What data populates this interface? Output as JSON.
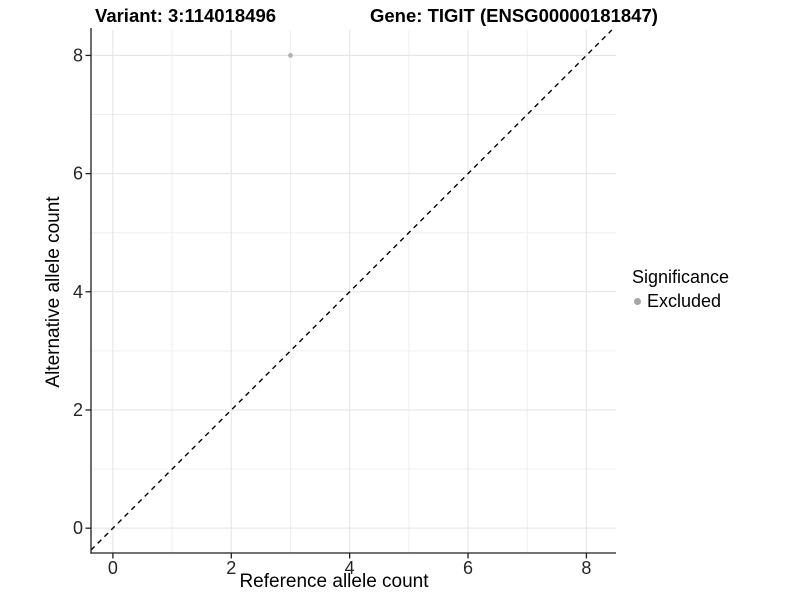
{
  "chart_data": {
    "type": "scatter",
    "title_left": "Variant: 3:114018496",
    "title_right": "Gene: TIGIT (ENSG00000181847)",
    "xlabel": "Reference allele count",
    "ylabel": "Alternative allele count",
    "x_ticks": [
      0,
      2,
      4,
      6,
      8
    ],
    "y_ticks": [
      0,
      2,
      4,
      6,
      8
    ],
    "x_minor_ticks": [
      1,
      3,
      5,
      7
    ],
    "y_minor_ticks": [
      1,
      3,
      5,
      7
    ],
    "xlim": [
      -0.37,
      8.5
    ],
    "ylim": [
      -0.42,
      8.43
    ],
    "grid": "major+minor",
    "series": [
      {
        "name": "Excluded",
        "color": "#b2b2b2",
        "points": [
          {
            "x": 3,
            "y": 8
          }
        ]
      }
    ],
    "reference_line": {
      "kind": "identity y=x",
      "style": "dashed",
      "color": "#000000"
    },
    "legend": {
      "title": "Significance",
      "position": "right",
      "entries": [
        {
          "label": "Excluded",
          "color": "#a5a5a5"
        }
      ]
    }
  },
  "colors": {
    "background": "#ffffff",
    "grid_major": "#e3e3e3",
    "grid_minor": "#f0f0f0",
    "axis": "#1f1f1f",
    "tick_label": "#262626"
  }
}
